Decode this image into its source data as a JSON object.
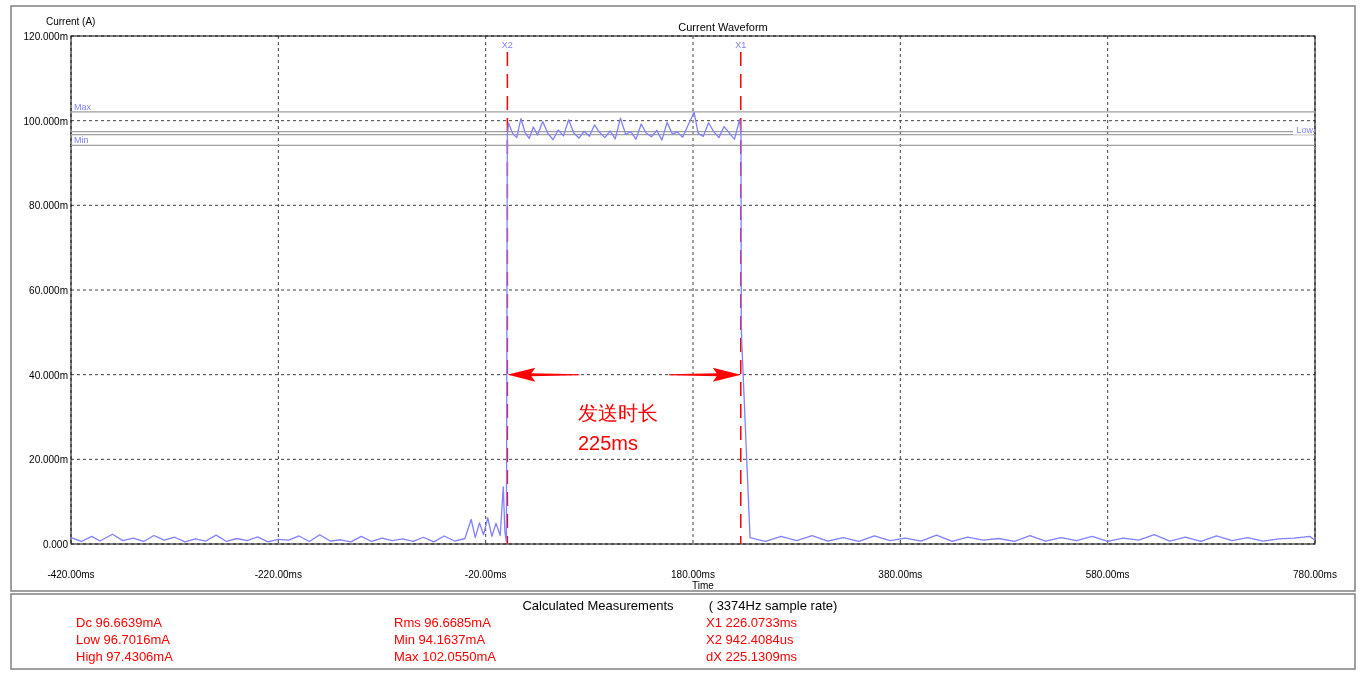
{
  "chart_data": {
    "type": "line",
    "title": "Current Waveform",
    "xlabel": "Time",
    "ylabel": "Current (A)",
    "x": [
      -420,
      -410,
      -400,
      -392,
      -380,
      -370,
      -360,
      -350,
      -340,
      -330,
      -320,
      -310,
      -300,
      -290,
      -280,
      -270,
      -260,
      -250,
      -240,
      -230,
      -220,
      -210,
      -200,
      -190,
      -180,
      -170,
      -160,
      -150,
      -140,
      -130,
      -120,
      -110,
      -100,
      -90,
      -80,
      -70,
      -60,
      -50,
      -40,
      -34,
      -30,
      -26,
      -22,
      -18,
      -14,
      -10,
      -6,
      -3,
      -1.5,
      0,
      0.9,
      2,
      6,
      10,
      14,
      18,
      22,
      26,
      30,
      35,
      40,
      45,
      50,
      55,
      60,
      65,
      70,
      75,
      80,
      85,
      90,
      95,
      100,
      105,
      110,
      115,
      120,
      125,
      130,
      135,
      140,
      145,
      150,
      155,
      160,
      165,
      170,
      175,
      181,
      185,
      190,
      195,
      200,
      205,
      210,
      215,
      220,
      225,
      226.1,
      226.3,
      226.6,
      227,
      235,
      250,
      265,
      280,
      295,
      310,
      325,
      340,
      355,
      370,
      385,
      400,
      415,
      430,
      445,
      460,
      475,
      490,
      505,
      520,
      535,
      550,
      565,
      580,
      595,
      610,
      625,
      640,
      655,
      670,
      685,
      700,
      715,
      730,
      745,
      760,
      775,
      780
    ],
    "series": [
      {
        "color": "#8080ff",
        "values": [
          1.5,
          0.6,
          1.8,
          0.7,
          2.3,
          0.8,
          1.4,
          0.6,
          2.0,
          0.9,
          1.6,
          0.5,
          1.2,
          0.7,
          2.1,
          0.6,
          1.3,
          0.8,
          1.7,
          0.5,
          1.1,
          0.9,
          1.9,
          0.6,
          2.2,
          0.7,
          1.0,
          0.5,
          1.8,
          0.6,
          1.4,
          0.8,
          1.2,
          0.6,
          1.6,
          0.5,
          1.9,
          0.7,
          1.3,
          5.8,
          1.5,
          5.0,
          2.2,
          6.2,
          1.8,
          4.9,
          2.0,
          13.5,
          3.0,
          0.5,
          96.5,
          99.5,
          97.0,
          96.0,
          100.5,
          97.2,
          95.8,
          98.5,
          96.6,
          99.8,
          97.0,
          95.5,
          97.8,
          96.4,
          100.2,
          97.1,
          95.9,
          97.5,
          96.3,
          99.0,
          97.2,
          96.0,
          97.6,
          95.7,
          100.6,
          96.8,
          97.4,
          95.6,
          99.2,
          97.0,
          96.2,
          97.7,
          95.4,
          99.6,
          96.9,
          97.3,
          96.1,
          98.8,
          102,
          97.0,
          96.3,
          99.5,
          97.4,
          96.0,
          98.6,
          97.1,
          95.6,
          100.3,
          96.8,
          97.2,
          52.0,
          48.0,
          1.5,
          0.6,
          1.8,
          0.8,
          2.0,
          0.7,
          1.5,
          0.6,
          1.9,
          0.8,
          1.4,
          0.7,
          2.1,
          0.6,
          1.6,
          0.9,
          1.3,
          0.6,
          2.0,
          0.7,
          1.5,
          0.8,
          1.8,
          0.6,
          1.4,
          0.9,
          2.2,
          0.7,
          1.6,
          0.6,
          1.9,
          0.8,
          1.5,
          0.7,
          1.2,
          1.4,
          1.8,
          0.9
        ]
      }
    ],
    "xlim": [
      -420,
      780
    ],
    "xticks": [
      {
        "value": -420,
        "label": "-420.00ms"
      },
      {
        "value": -220,
        "label": "-220.00ms"
      },
      {
        "value": -20,
        "label": "-20.00ms"
      },
      {
        "value": 180,
        "label": "180.00ms"
      },
      {
        "value": 380,
        "label": "380.00ms"
      },
      {
        "value": 580,
        "label": "580.00ms"
      },
      {
        "value": 780,
        "label": "780.00ms"
      }
    ],
    "ylim": [
      0,
      120
    ],
    "yticks": [
      {
        "value": 0,
        "label": "0.000"
      },
      {
        "value": 20,
        "label": "20.000m"
      },
      {
        "value": 40,
        "label": "40.000m"
      },
      {
        "value": 60,
        "label": "60.000m"
      },
      {
        "value": 80,
        "label": "80.000m"
      },
      {
        "value": 100,
        "label": "100.000m"
      },
      {
        "value": 120,
        "label": "120.000m"
      }
    ],
    "grid": true,
    "marker": "none",
    "line_style": "solid",
    "ref_lines": [
      {
        "axis": "y",
        "value": 102.055,
        "label": "Max",
        "color": "#a0a0a0",
        "line_style": "solid"
      },
      {
        "axis": "y",
        "value": 94.1637,
        "label": "Min",
        "color": "#a0a0a0",
        "line_style": "solid"
      },
      {
        "axis": "y",
        "value": 97.4306,
        "label": null,
        "color": "#a0a0a0",
        "line_style": "solid"
      },
      {
        "axis": "y",
        "value": 96.7016,
        "label": "Low",
        "color": "#a0a0a0",
        "line_style": "solid"
      },
      {
        "axis": "x",
        "value": 0.9424,
        "label": "X2",
        "color": "#ff0000",
        "line_style": "dashed"
      },
      {
        "axis": "x",
        "value": 226.0733,
        "label": "X1",
        "color": "#ff0000",
        "line_style": "dashed"
      }
    ],
    "annotations": [
      "Calculated Measurements",
      "( 3374Hz sample rate)",
      "Dc  96.6639mA",
      "Rms  96.6685mA",
      "X1 226.0733ms",
      "Low  96.7016mA",
      "Min  94.1637mA",
      "X2 942.4084us",
      "High  97.4306mA",
      "Max 102.0550mA",
      "dX 225.1309ms",
      "发送时长\n225ms"
    ]
  }
}
